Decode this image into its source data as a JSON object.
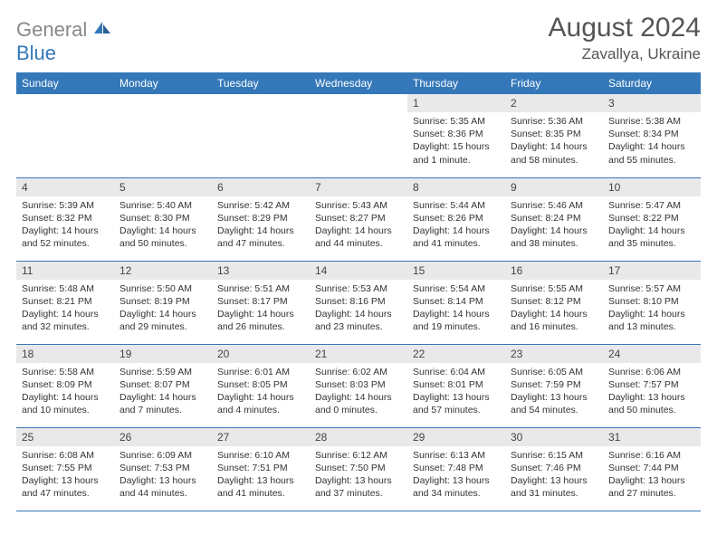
{
  "logo": {
    "word1": "General",
    "word2": "Blue"
  },
  "title": "August 2024",
  "location": "Zavallya, Ukraine",
  "colors": {
    "brand": "#3478b9",
    "header_bg": "#3478b9",
    "header_fg": "#ffffff",
    "daynum_bg": "#e9e9e9",
    "text": "#333333",
    "title": "#555555",
    "border": "#3478b9"
  },
  "days_of_week": [
    "Sunday",
    "Monday",
    "Tuesday",
    "Wednesday",
    "Thursday",
    "Friday",
    "Saturday"
  ],
  "weeks": [
    [
      {
        "n": "",
        "sr": "",
        "ss": "",
        "dl": ""
      },
      {
        "n": "",
        "sr": "",
        "ss": "",
        "dl": ""
      },
      {
        "n": "",
        "sr": "",
        "ss": "",
        "dl": ""
      },
      {
        "n": "",
        "sr": "",
        "ss": "",
        "dl": ""
      },
      {
        "n": "1",
        "sr": "Sunrise: 5:35 AM",
        "ss": "Sunset: 8:36 PM",
        "dl": "Daylight: 15 hours and 1 minute."
      },
      {
        "n": "2",
        "sr": "Sunrise: 5:36 AM",
        "ss": "Sunset: 8:35 PM",
        "dl": "Daylight: 14 hours and 58 minutes."
      },
      {
        "n": "3",
        "sr": "Sunrise: 5:38 AM",
        "ss": "Sunset: 8:34 PM",
        "dl": "Daylight: 14 hours and 55 minutes."
      }
    ],
    [
      {
        "n": "4",
        "sr": "Sunrise: 5:39 AM",
        "ss": "Sunset: 8:32 PM",
        "dl": "Daylight: 14 hours and 52 minutes."
      },
      {
        "n": "5",
        "sr": "Sunrise: 5:40 AM",
        "ss": "Sunset: 8:30 PM",
        "dl": "Daylight: 14 hours and 50 minutes."
      },
      {
        "n": "6",
        "sr": "Sunrise: 5:42 AM",
        "ss": "Sunset: 8:29 PM",
        "dl": "Daylight: 14 hours and 47 minutes."
      },
      {
        "n": "7",
        "sr": "Sunrise: 5:43 AM",
        "ss": "Sunset: 8:27 PM",
        "dl": "Daylight: 14 hours and 44 minutes."
      },
      {
        "n": "8",
        "sr": "Sunrise: 5:44 AM",
        "ss": "Sunset: 8:26 PM",
        "dl": "Daylight: 14 hours and 41 minutes."
      },
      {
        "n": "9",
        "sr": "Sunrise: 5:46 AM",
        "ss": "Sunset: 8:24 PM",
        "dl": "Daylight: 14 hours and 38 minutes."
      },
      {
        "n": "10",
        "sr": "Sunrise: 5:47 AM",
        "ss": "Sunset: 8:22 PM",
        "dl": "Daylight: 14 hours and 35 minutes."
      }
    ],
    [
      {
        "n": "11",
        "sr": "Sunrise: 5:48 AM",
        "ss": "Sunset: 8:21 PM",
        "dl": "Daylight: 14 hours and 32 minutes."
      },
      {
        "n": "12",
        "sr": "Sunrise: 5:50 AM",
        "ss": "Sunset: 8:19 PM",
        "dl": "Daylight: 14 hours and 29 minutes."
      },
      {
        "n": "13",
        "sr": "Sunrise: 5:51 AM",
        "ss": "Sunset: 8:17 PM",
        "dl": "Daylight: 14 hours and 26 minutes."
      },
      {
        "n": "14",
        "sr": "Sunrise: 5:53 AM",
        "ss": "Sunset: 8:16 PM",
        "dl": "Daylight: 14 hours and 23 minutes."
      },
      {
        "n": "15",
        "sr": "Sunrise: 5:54 AM",
        "ss": "Sunset: 8:14 PM",
        "dl": "Daylight: 14 hours and 19 minutes."
      },
      {
        "n": "16",
        "sr": "Sunrise: 5:55 AM",
        "ss": "Sunset: 8:12 PM",
        "dl": "Daylight: 14 hours and 16 minutes."
      },
      {
        "n": "17",
        "sr": "Sunrise: 5:57 AM",
        "ss": "Sunset: 8:10 PM",
        "dl": "Daylight: 14 hours and 13 minutes."
      }
    ],
    [
      {
        "n": "18",
        "sr": "Sunrise: 5:58 AM",
        "ss": "Sunset: 8:09 PM",
        "dl": "Daylight: 14 hours and 10 minutes."
      },
      {
        "n": "19",
        "sr": "Sunrise: 5:59 AM",
        "ss": "Sunset: 8:07 PM",
        "dl": "Daylight: 14 hours and 7 minutes."
      },
      {
        "n": "20",
        "sr": "Sunrise: 6:01 AM",
        "ss": "Sunset: 8:05 PM",
        "dl": "Daylight: 14 hours and 4 minutes."
      },
      {
        "n": "21",
        "sr": "Sunrise: 6:02 AM",
        "ss": "Sunset: 8:03 PM",
        "dl": "Daylight: 14 hours and 0 minutes."
      },
      {
        "n": "22",
        "sr": "Sunrise: 6:04 AM",
        "ss": "Sunset: 8:01 PM",
        "dl": "Daylight: 13 hours and 57 minutes."
      },
      {
        "n": "23",
        "sr": "Sunrise: 6:05 AM",
        "ss": "Sunset: 7:59 PM",
        "dl": "Daylight: 13 hours and 54 minutes."
      },
      {
        "n": "24",
        "sr": "Sunrise: 6:06 AM",
        "ss": "Sunset: 7:57 PM",
        "dl": "Daylight: 13 hours and 50 minutes."
      }
    ],
    [
      {
        "n": "25",
        "sr": "Sunrise: 6:08 AM",
        "ss": "Sunset: 7:55 PM",
        "dl": "Daylight: 13 hours and 47 minutes."
      },
      {
        "n": "26",
        "sr": "Sunrise: 6:09 AM",
        "ss": "Sunset: 7:53 PM",
        "dl": "Daylight: 13 hours and 44 minutes."
      },
      {
        "n": "27",
        "sr": "Sunrise: 6:10 AM",
        "ss": "Sunset: 7:51 PM",
        "dl": "Daylight: 13 hours and 41 minutes."
      },
      {
        "n": "28",
        "sr": "Sunrise: 6:12 AM",
        "ss": "Sunset: 7:50 PM",
        "dl": "Daylight: 13 hours and 37 minutes."
      },
      {
        "n": "29",
        "sr": "Sunrise: 6:13 AM",
        "ss": "Sunset: 7:48 PM",
        "dl": "Daylight: 13 hours and 34 minutes."
      },
      {
        "n": "30",
        "sr": "Sunrise: 6:15 AM",
        "ss": "Sunset: 7:46 PM",
        "dl": "Daylight: 13 hours and 31 minutes."
      },
      {
        "n": "31",
        "sr": "Sunrise: 6:16 AM",
        "ss": "Sunset: 7:44 PM",
        "dl": "Daylight: 13 hours and 27 minutes."
      }
    ]
  ]
}
